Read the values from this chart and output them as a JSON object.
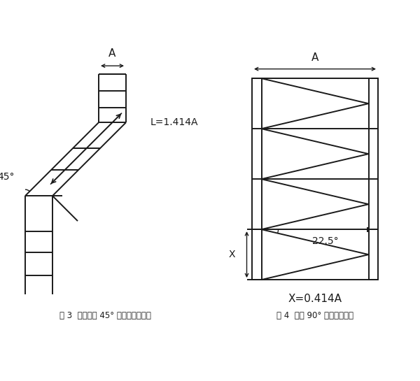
{
  "fig_width": 6.0,
  "fig_height": 5.45,
  "bg_color": "#ffffff",
  "line_color": "#1a1a1a",
  "line_width": 1.4,
  "fig3_caption": "图 3  水平跳弯 45° 弯头的斜边计算",
  "fig4_caption": "图 4  水平 90° 弯头切割尺寸",
  "label_A_fig3": "A",
  "label_45": "45°",
  "label_L": "L=1.414A",
  "label_A_fig4": "A",
  "label_X": "X",
  "label_225": "22.5°",
  "label_X_eq": "X=0.414A",
  "font_size_caption": 8.5,
  "font_size_label": 10
}
